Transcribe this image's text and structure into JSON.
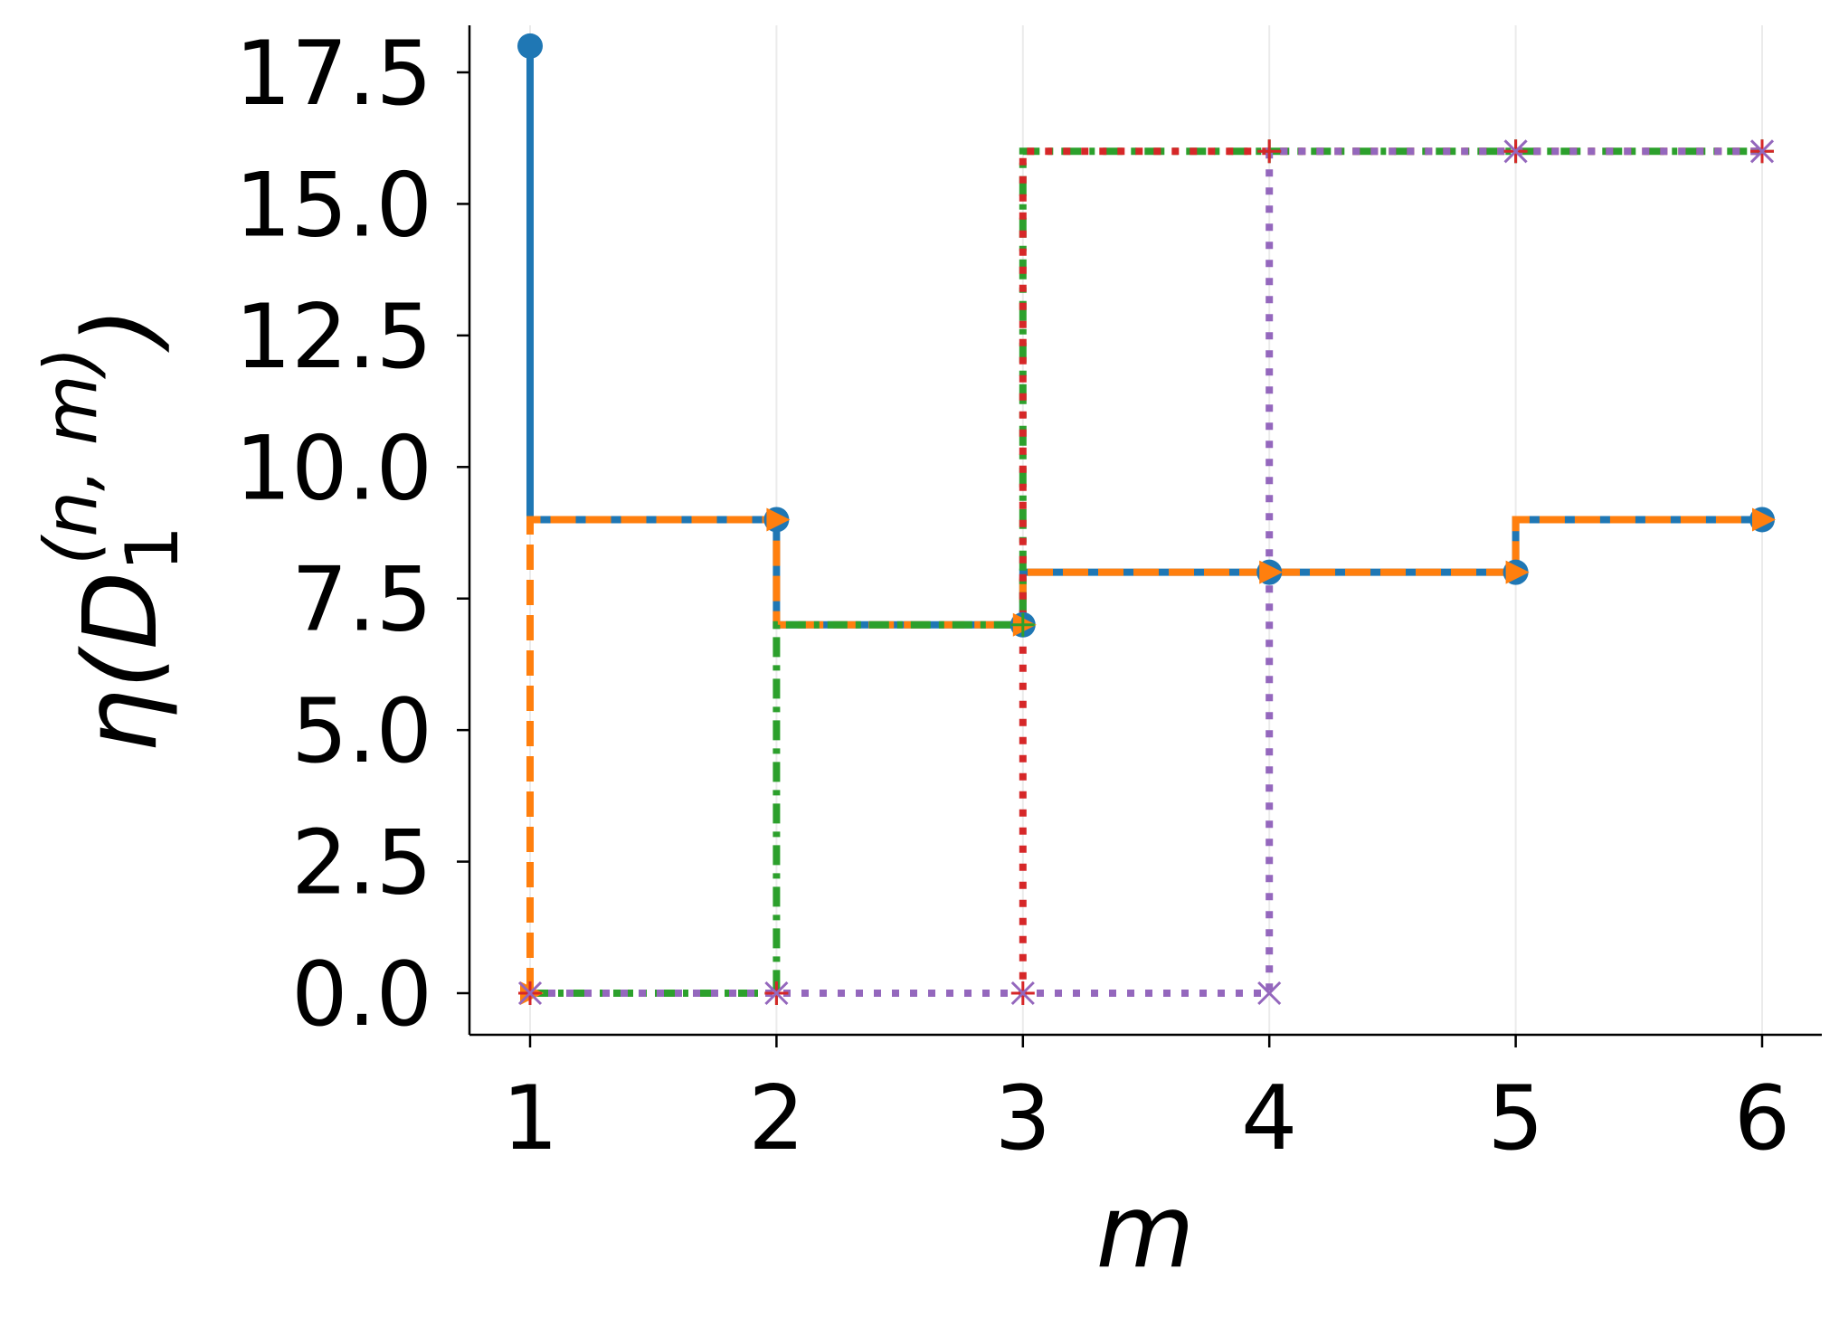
{
  "chart_data": {
    "type": "line",
    "step": "post",
    "title": "",
    "xlabel": "m",
    "ylabel": {
      "base": "η(D",
      "sub": "1",
      "sup": "(n, m)",
      "close": ")"
    },
    "x_ticks": [
      "1",
      "2",
      "3",
      "4",
      "5",
      "6"
    ],
    "y_ticks": [
      "0.0",
      "2.5",
      "5.0",
      "7.5",
      "10.0",
      "12.5",
      "15.0",
      "17.5"
    ],
    "xlim": [
      0.75,
      6.25
    ],
    "ylim": [
      -0.9,
      18.9
    ],
    "grid": "vertical lines at x ticks",
    "legend": "none",
    "series": [
      {
        "color": "#1f77b4",
        "line_style": "solid",
        "marker": "circle",
        "points": [
          [
            1,
            18
          ],
          [
            1,
            9
          ],
          [
            2,
            9
          ],
          [
            2,
            7
          ],
          [
            3,
            7
          ],
          [
            3,
            8
          ],
          [
            4,
            8
          ],
          [
            5,
            8
          ],
          [
            5,
            9
          ],
          [
            6,
            9
          ]
        ],
        "marker_points": [
          [
            1,
            18
          ],
          [
            2,
            9
          ],
          [
            3,
            7
          ],
          [
            4,
            8
          ],
          [
            5,
            8
          ],
          [
            6,
            9
          ]
        ]
      },
      {
        "color": "#ff7f0e",
        "line_style": "dashed",
        "marker": "triangle-right",
        "points": [
          [
            1,
            0
          ],
          [
            1,
            9
          ],
          [
            2,
            9
          ],
          [
            2,
            7
          ],
          [
            3,
            7
          ],
          [
            3,
            8
          ],
          [
            4,
            8
          ],
          [
            5,
            8
          ],
          [
            5,
            9
          ],
          [
            6,
            9
          ]
        ],
        "marker_points": [
          [
            1,
            0
          ],
          [
            2,
            9
          ],
          [
            3,
            7
          ],
          [
            4,
            8
          ],
          [
            5,
            8
          ],
          [
            6,
            9
          ]
        ]
      },
      {
        "color": "#2ca02c",
        "line_style": "dashdot",
        "marker": "plus",
        "points": [
          [
            1,
            0
          ],
          [
            2,
            0
          ],
          [
            2,
            7
          ],
          [
            3,
            7
          ],
          [
            3,
            16
          ],
          [
            4,
            16
          ],
          [
            5,
            16
          ],
          [
            6,
            16
          ]
        ],
        "marker_points": [
          [
            1,
            0
          ],
          [
            2,
            0
          ],
          [
            3,
            7
          ],
          [
            4,
            16
          ],
          [
            5,
            16
          ],
          [
            6,
            16
          ]
        ]
      },
      {
        "color": "#d62728",
        "line_style": "dotted",
        "marker": "plus",
        "points": [
          [
            1,
            0
          ],
          [
            2,
            0
          ],
          [
            3,
            0
          ],
          [
            3,
            16
          ],
          [
            4,
            16
          ],
          [
            5,
            16
          ],
          [
            6,
            16
          ]
        ],
        "marker_points": [
          [
            1,
            0
          ],
          [
            2,
            0
          ],
          [
            3,
            0
          ],
          [
            4,
            16
          ],
          [
            5,
            16
          ],
          [
            6,
            16
          ]
        ]
      },
      {
        "color": "#9467bd",
        "line_style": "dotted",
        "marker": "x",
        "points": [
          [
            1,
            0
          ],
          [
            2,
            0
          ],
          [
            3,
            0
          ],
          [
            4,
            0
          ],
          [
            4,
            16
          ],
          [
            5,
            16
          ],
          [
            6,
            16
          ]
        ],
        "marker_points": [
          [
            1,
            0
          ],
          [
            2,
            0
          ],
          [
            3,
            0
          ],
          [
            4,
            0
          ],
          [
            5,
            16
          ],
          [
            6,
            16
          ]
        ]
      }
    ]
  }
}
